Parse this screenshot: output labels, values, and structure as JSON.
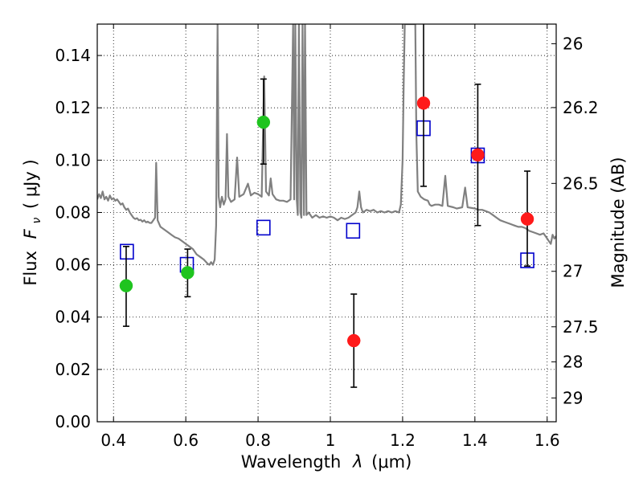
{
  "chart_data": {
    "type": "scatter",
    "xlabel_text": "Wavelength",
    "xlabel_symbol": "λ",
    "xlabel_unit": "(μm)",
    "ylabel_text": "Flux",
    "ylabel_symbol": "F",
    "ylabel_subscript": "ν",
    "ylabel_unit": "( μJy )",
    "right_label": "Magnitude (AB)",
    "xlim": [
      0.355,
      1.625
    ],
    "ylim": [
      0.0,
      0.152
    ],
    "x_ticks": [
      0.4,
      0.6,
      0.8,
      1.0,
      1.2,
      1.4,
      1.6
    ],
    "x_tick_labels": [
      "0.4",
      "0.6",
      "0.8",
      "1",
      "1.2",
      "1.4",
      "1.6"
    ],
    "y_ticks": [
      0.0,
      0.02,
      0.04,
      0.06,
      0.08,
      0.1,
      0.12,
      0.14
    ],
    "y_tick_labels": [
      "0.00",
      "0.02",
      "0.04",
      "0.06",
      "0.08",
      "0.10",
      "0.12",
      "0.14"
    ],
    "right_ticks": [
      {
        "label": "26",
        "flux": 0.1445
      },
      {
        "label": "26.2",
        "flux": 0.1201
      },
      {
        "label": "26.5",
        "flux": 0.0911
      },
      {
        "label": "27",
        "flux": 0.0575
      },
      {
        "label": "27.5",
        "flux": 0.0363
      },
      {
        "label": "28",
        "flux": 0.0229
      },
      {
        "label": "29",
        "flux": 0.0091
      }
    ],
    "grid": true,
    "colors": {
      "spectrum": "#808080",
      "green_points": "#1fc41f",
      "red_points": "#ff1a1a",
      "model_boxes": "#0000cc",
      "errorbars": "#000000"
    },
    "series": [
      {
        "kind": "line",
        "color_key": "spectrum",
        "points": [
          [
            0.355,
            0.085
          ],
          [
            0.36,
            0.087
          ],
          [
            0.365,
            0.0855
          ],
          [
            0.37,
            0.088
          ],
          [
            0.375,
            0.085
          ],
          [
            0.38,
            0.086
          ],
          [
            0.385,
            0.0845
          ],
          [
            0.39,
            0.0865
          ],
          [
            0.395,
            0.085
          ],
          [
            0.4,
            0.0855
          ],
          [
            0.405,
            0.0845
          ],
          [
            0.41,
            0.085
          ],
          [
            0.415,
            0.084
          ],
          [
            0.42,
            0.083
          ],
          [
            0.425,
            0.0835
          ],
          [
            0.43,
            0.082
          ],
          [
            0.435,
            0.081
          ],
          [
            0.44,
            0.0815
          ],
          [
            0.445,
            0.08
          ],
          [
            0.45,
            0.079
          ],
          [
            0.455,
            0.078
          ],
          [
            0.46,
            0.0775
          ],
          [
            0.465,
            0.0778
          ],
          [
            0.47,
            0.077
          ],
          [
            0.475,
            0.0772
          ],
          [
            0.48,
            0.0765
          ],
          [
            0.485,
            0.077
          ],
          [
            0.49,
            0.0762
          ],
          [
            0.495,
            0.0765
          ],
          [
            0.5,
            0.076
          ],
          [
            0.505,
            0.076
          ],
          [
            0.51,
            0.077
          ],
          [
            0.515,
            0.078
          ],
          [
            0.518,
            0.099
          ],
          [
            0.522,
            0.077
          ],
          [
            0.53,
            0.0745
          ],
          [
            0.54,
            0.0735
          ],
          [
            0.55,
            0.0725
          ],
          [
            0.56,
            0.0715
          ],
          [
            0.57,
            0.0705
          ],
          [
            0.58,
            0.07
          ],
          [
            0.59,
            0.069
          ],
          [
            0.6,
            0.068
          ],
          [
            0.61,
            0.067
          ],
          [
            0.62,
            0.066
          ],
          [
            0.63,
            0.064
          ],
          [
            0.64,
            0.063
          ],
          [
            0.65,
            0.062
          ],
          [
            0.66,
            0.0605
          ],
          [
            0.665,
            0.06
          ],
          [
            0.67,
            0.061
          ],
          [
            0.675,
            0.06
          ],
          [
            0.68,
            0.062
          ],
          [
            0.684,
            0.075
          ],
          [
            0.688,
            0.152
          ],
          [
            0.691,
            0.086
          ],
          [
            0.695,
            0.082
          ],
          [
            0.7,
            0.086
          ],
          [
            0.705,
            0.083
          ],
          [
            0.71,
            0.085
          ],
          [
            0.714,
            0.11
          ],
          [
            0.718,
            0.086
          ],
          [
            0.725,
            0.084
          ],
          [
            0.735,
            0.085
          ],
          [
            0.742,
            0.101
          ],
          [
            0.748,
            0.086
          ],
          [
            0.76,
            0.087
          ],
          [
            0.772,
            0.091
          ],
          [
            0.78,
            0.0865
          ],
          [
            0.79,
            0.0875
          ],
          [
            0.8,
            0.087
          ],
          [
            0.81,
            0.086
          ],
          [
            0.817,
            0.132
          ],
          [
            0.822,
            0.088
          ],
          [
            0.83,
            0.0865
          ],
          [
            0.835,
            0.093
          ],
          [
            0.84,
            0.087
          ],
          [
            0.85,
            0.085
          ],
          [
            0.86,
            0.0845
          ],
          [
            0.87,
            0.0845
          ],
          [
            0.88,
            0.084
          ],
          [
            0.89,
            0.085
          ],
          [
            0.897,
            0.152
          ],
          [
            0.9,
            0.085
          ],
          [
            0.903,
            0.152
          ],
          [
            0.907,
            0.085
          ],
          [
            0.91,
            0.079
          ],
          [
            0.913,
            0.152
          ],
          [
            0.917,
            0.08
          ],
          [
            0.92,
            0.078
          ],
          [
            0.923,
            0.152
          ],
          [
            0.927,
            0.079
          ],
          [
            0.93,
            0.152
          ],
          [
            0.934,
            0.079
          ],
          [
            0.94,
            0.08
          ],
          [
            0.95,
            0.078
          ],
          [
            0.96,
            0.079
          ],
          [
            0.97,
            0.078
          ],
          [
            0.98,
            0.0785
          ],
          [
            0.99,
            0.078
          ],
          [
            1.0,
            0.0785
          ],
          [
            1.01,
            0.078
          ],
          [
            1.02,
            0.077
          ],
          [
            1.03,
            0.078
          ],
          [
            1.04,
            0.0775
          ],
          [
            1.05,
            0.078
          ],
          [
            1.06,
            0.079
          ],
          [
            1.07,
            0.08
          ],
          [
            1.075,
            0.082
          ],
          [
            1.08,
            0.088
          ],
          [
            1.085,
            0.082
          ],
          [
            1.09,
            0.08
          ],
          [
            1.1,
            0.081
          ],
          [
            1.11,
            0.0805
          ],
          [
            1.12,
            0.081
          ],
          [
            1.13,
            0.08
          ],
          [
            1.14,
            0.0805
          ],
          [
            1.15,
            0.08
          ],
          [
            1.16,
            0.0805
          ],
          [
            1.17,
            0.08
          ],
          [
            1.18,
            0.0805
          ],
          [
            1.19,
            0.08
          ],
          [
            1.195,
            0.083
          ],
          [
            1.2,
            0.1
          ],
          [
            1.203,
            0.13
          ],
          [
            1.206,
            0.152
          ],
          [
            1.21,
            0.152
          ],
          [
            1.215,
            0.152
          ],
          [
            1.225,
            0.152
          ],
          [
            1.23,
            0.152
          ],
          [
            1.235,
            0.152
          ],
          [
            1.238,
            0.11
          ],
          [
            1.242,
            0.088
          ],
          [
            1.25,
            0.086
          ],
          [
            1.26,
            0.085
          ],
          [
            1.27,
            0.0845
          ],
          [
            1.275,
            0.083
          ],
          [
            1.28,
            0.0825
          ],
          [
            1.29,
            0.083
          ],
          [
            1.3,
            0.083
          ],
          [
            1.31,
            0.0825
          ],
          [
            1.318,
            0.094
          ],
          [
            1.325,
            0.0825
          ],
          [
            1.34,
            0.082
          ],
          [
            1.35,
            0.0815
          ],
          [
            1.365,
            0.082
          ],
          [
            1.373,
            0.0895
          ],
          [
            1.38,
            0.082
          ],
          [
            1.4,
            0.0815
          ],
          [
            1.41,
            0.081
          ],
          [
            1.42,
            0.081
          ],
          [
            1.43,
            0.0805
          ],
          [
            1.44,
            0.08
          ],
          [
            1.45,
            0.079
          ],
          [
            1.46,
            0.078
          ],
          [
            1.47,
            0.077
          ],
          [
            1.48,
            0.0765
          ],
          [
            1.49,
            0.076
          ],
          [
            1.5,
            0.0755
          ],
          [
            1.51,
            0.075
          ],
          [
            1.52,
            0.0745
          ],
          [
            1.53,
            0.0745
          ],
          [
            1.54,
            0.074
          ],
          [
            1.55,
            0.073
          ],
          [
            1.56,
            0.0725
          ],
          [
            1.57,
            0.072
          ],
          [
            1.58,
            0.0715
          ],
          [
            1.59,
            0.072
          ],
          [
            1.6,
            0.07
          ],
          [
            1.605,
            0.069
          ],
          [
            1.61,
            0.068
          ],
          [
            1.615,
            0.0715
          ],
          [
            1.62,
            0.07
          ],
          [
            1.625,
            0.071
          ]
        ]
      },
      {
        "kind": "errorbar",
        "color_key": "green_points",
        "points": [
          {
            "x": 0.435,
            "y": 0.052,
            "lo": 0.0365,
            "hi": 0.067
          },
          {
            "x": 0.605,
            "y": 0.057,
            "lo": 0.0478,
            "hi": 0.066
          },
          {
            "x": 0.815,
            "y": 0.1145,
            "lo": 0.0985,
            "hi": 0.131
          }
        ]
      },
      {
        "kind": "errorbar",
        "color_key": "red_points",
        "points": [
          {
            "x": 1.065,
            "y": 0.031,
            "lo": 0.0132,
            "hi": 0.0488
          },
          {
            "x": 1.258,
            "y": 0.1218,
            "lo": 0.09,
            "hi": 0.1535
          },
          {
            "x": 1.408,
            "y": 0.102,
            "lo": 0.075,
            "hi": 0.129
          },
          {
            "x": 1.545,
            "y": 0.0775,
            "lo": 0.0595,
            "hi": 0.0958
          }
        ]
      },
      {
        "kind": "box",
        "color_key": "model_boxes",
        "points": [
          {
            "x": 0.437,
            "y": 0.065
          },
          {
            "x": 0.603,
            "y": 0.06
          },
          {
            "x": 0.815,
            "y": 0.0742
          },
          {
            "x": 1.063,
            "y": 0.073
          },
          {
            "x": 1.258,
            "y": 0.1122
          },
          {
            "x": 1.408,
            "y": 0.1018
          },
          {
            "x": 1.545,
            "y": 0.0617
          }
        ]
      }
    ]
  }
}
